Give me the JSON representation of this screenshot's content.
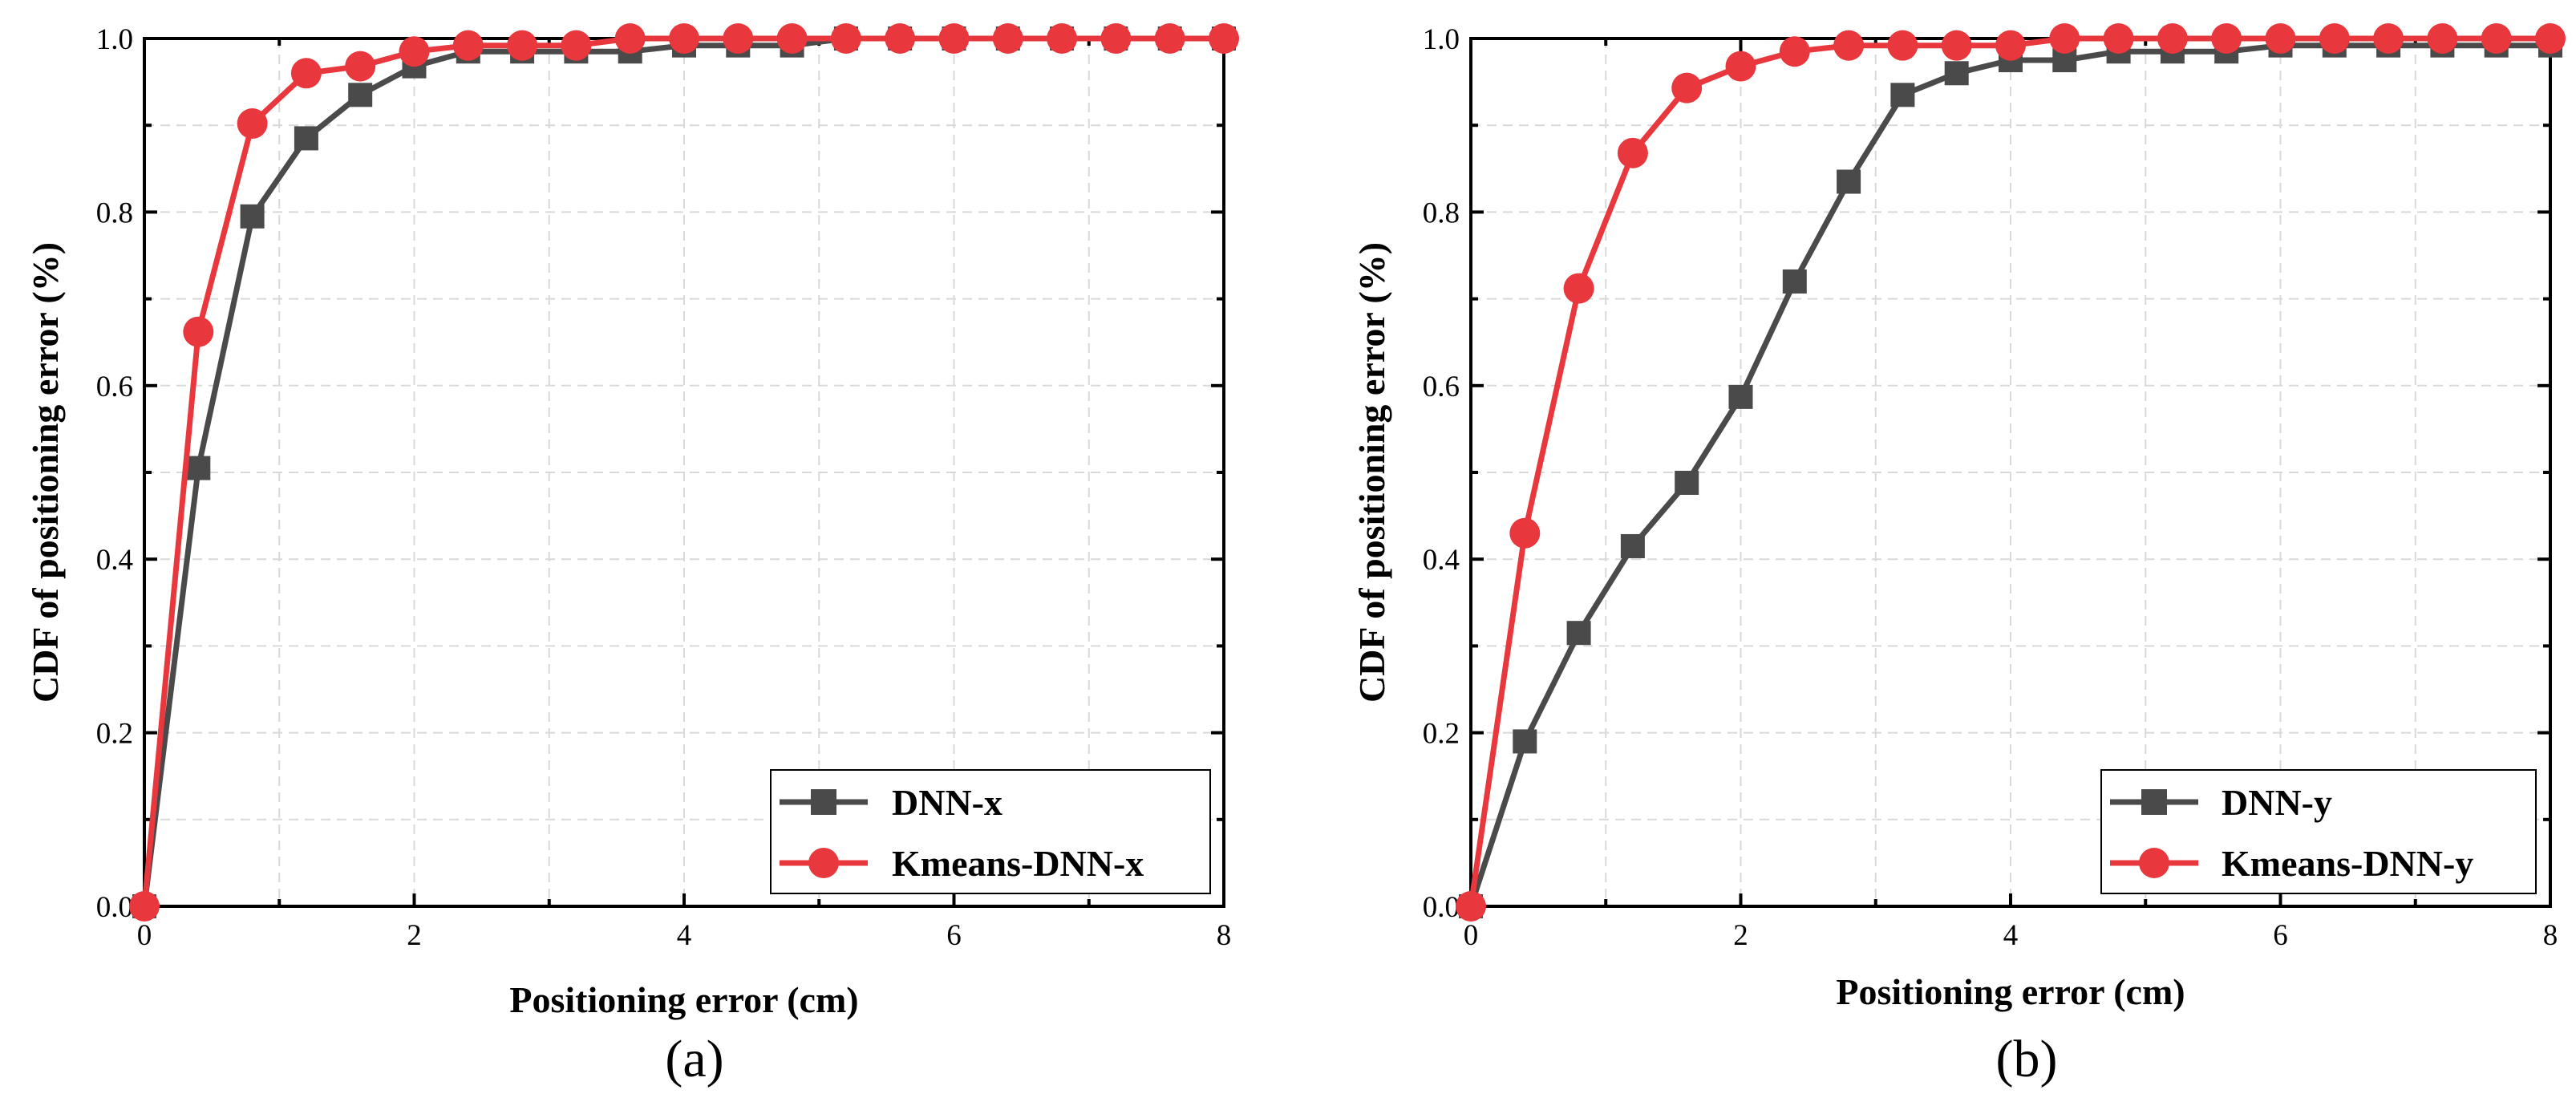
{
  "chart_data": [
    {
      "type": "line",
      "panel": "(a)",
      "xlabel": "Positioning error (cm)",
      "ylabel": "CDF of positioning error (%)",
      "xlim": [
        0,
        8
      ],
      "ylim": [
        0,
        1.0
      ],
      "xticks": [
        "0",
        "2",
        "4",
        "6",
        "8"
      ],
      "yticks": [
        "0.0",
        "0.2",
        "0.4",
        "0.6",
        "0.8",
        "1.0"
      ],
      "grid": true,
      "legend_position": "bottom-right",
      "x": [
        0,
        0.4,
        0.8,
        1.2,
        1.6,
        2.0,
        2.4,
        2.8,
        3.2,
        3.6,
        4.0,
        4.4,
        4.8,
        5.2,
        5.6,
        6.0,
        6.4,
        6.8,
        7.2,
        7.6,
        8.0
      ],
      "series": [
        {
          "name": "DNN-x",
          "marker": "square",
          "color": "#4a4a4a",
          "values": [
            0,
            0.505,
            0.795,
            0.885,
            0.935,
            0.968,
            0.985,
            0.985,
            0.985,
            0.985,
            0.992,
            0.992,
            0.992,
            1.0,
            1.0,
            1.0,
            1.0,
            1.0,
            1.0,
            1.0,
            1.0
          ]
        },
        {
          "name": "Kmeans-DNN-x",
          "marker": "circle",
          "color": "#e8383d",
          "values": [
            0,
            0.662,
            0.902,
            0.96,
            0.968,
            0.985,
            0.992,
            0.992,
            0.992,
            1.0,
            1.0,
            1.0,
            1.0,
            1.0,
            1.0,
            1.0,
            1.0,
            1.0,
            1.0,
            1.0,
            1.0
          ]
        }
      ]
    },
    {
      "type": "line",
      "panel": "(b)",
      "xlabel": "Positioning error (cm)",
      "ylabel": "CDF of positioning error (%)",
      "xlim": [
        0,
        8
      ],
      "ylim": [
        0,
        1.0
      ],
      "xticks": [
        "0",
        "2",
        "4",
        "6",
        "8"
      ],
      "yticks": [
        "0.0",
        "0.2",
        "0.4",
        "0.6",
        "0.8",
        "1.0"
      ],
      "grid": true,
      "legend_position": "bottom-right",
      "x": [
        0,
        0.4,
        0.8,
        1.2,
        1.6,
        2.0,
        2.4,
        2.8,
        3.2,
        3.6,
        4.0,
        4.4,
        4.8,
        5.2,
        5.6,
        6.0,
        6.4,
        6.8,
        7.2,
        7.6,
        8.0
      ],
      "series": [
        {
          "name": "DNN-y",
          "marker": "square",
          "color": "#4a4a4a",
          "values": [
            0,
            0.19,
            0.315,
            0.415,
            0.488,
            0.587,
            0.72,
            0.835,
            0.935,
            0.96,
            0.975,
            0.975,
            0.985,
            0.985,
            0.985,
            0.992,
            0.992,
            0.992,
            0.992,
            0.992,
            0.992
          ]
        },
        {
          "name": "Kmeans-DNN-y",
          "marker": "circle",
          "color": "#e8383d",
          "values": [
            0,
            0.43,
            0.712,
            0.868,
            0.943,
            0.968,
            0.985,
            0.992,
            0.992,
            0.992,
            0.992,
            1.0,
            1.0,
            1.0,
            1.0,
            1.0,
            1.0,
            1.0,
            1.0,
            1.0,
            1.0
          ]
        }
      ]
    }
  ]
}
